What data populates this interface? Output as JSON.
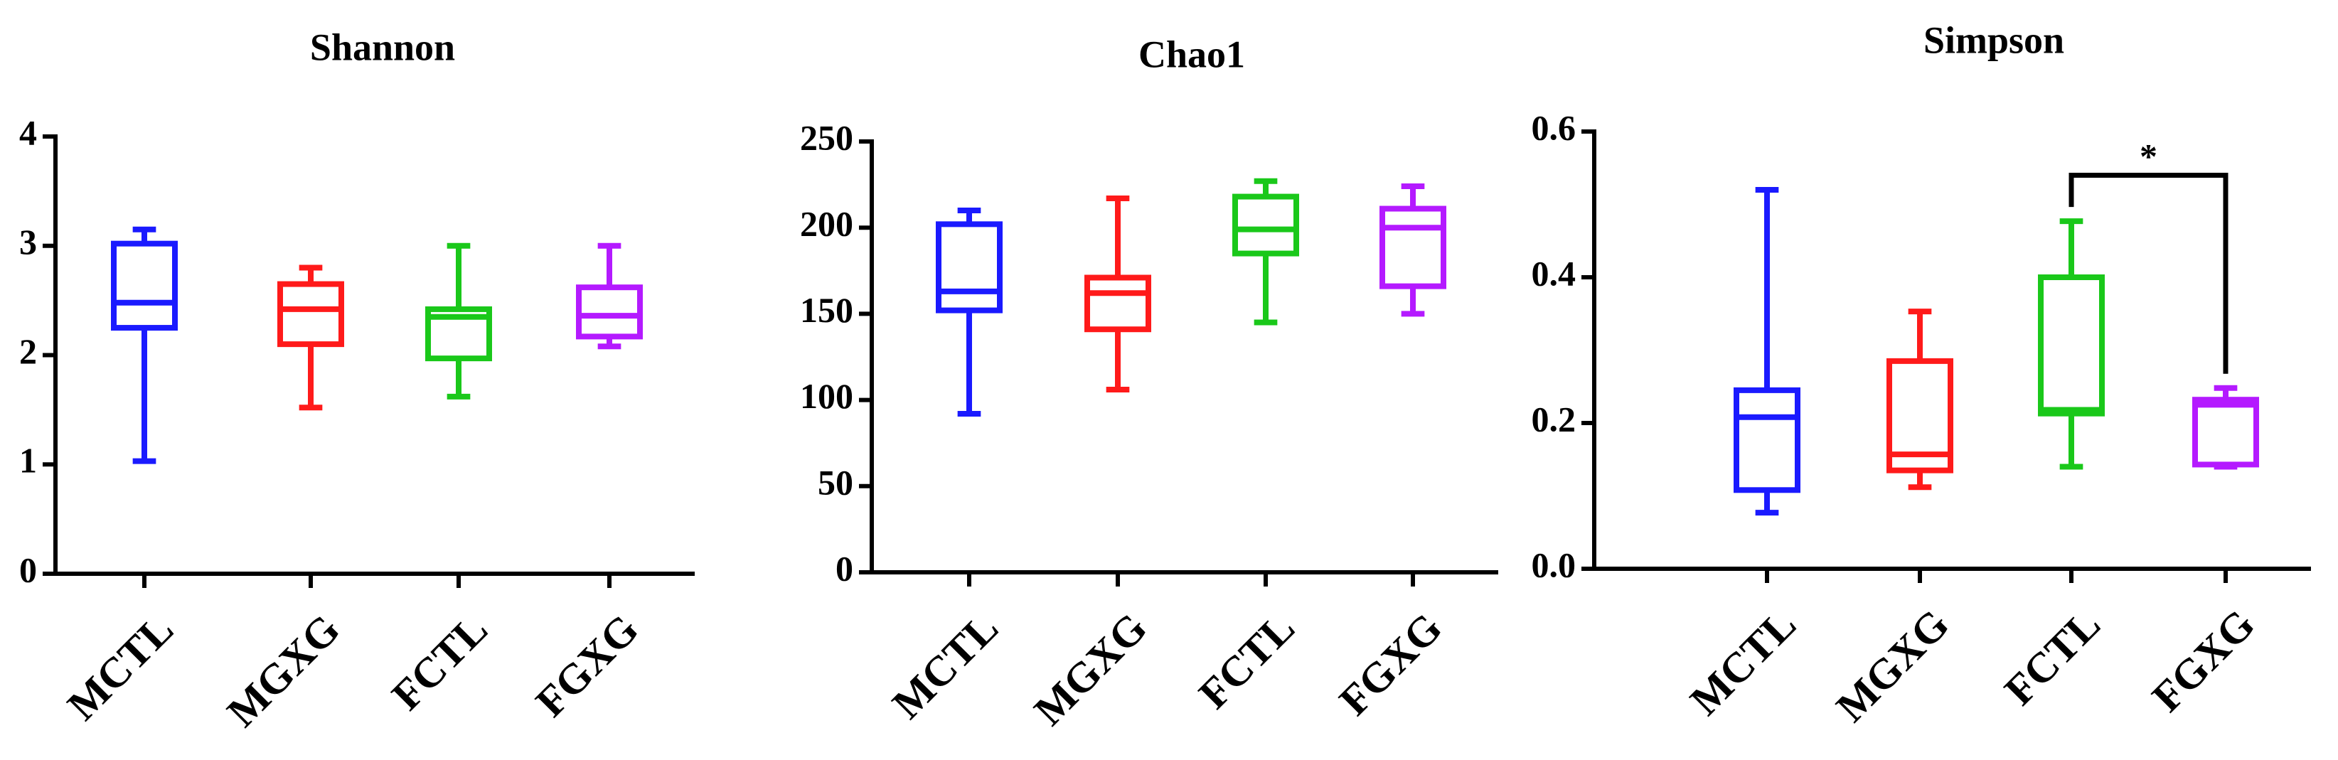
{
  "chart_data": [
    {
      "type": "boxplot",
      "title": "Shannon",
      "xlabel": "",
      "ylabel": "",
      "ylim": [
        0,
        4
      ],
      "yticks": [
        "0",
        "1",
        "2",
        "3",
        "4"
      ],
      "categories": [
        "MCTL",
        "MGXG",
        "FCTL",
        "FGXG"
      ],
      "colors": [
        "#1a1aff",
        "#ff1a1a",
        "#1ac81a",
        "#b41aff"
      ],
      "boxes": [
        {
          "min": 1.03,
          "q1": 2.25,
          "median": 2.48,
          "q3": 3.02,
          "max": 3.15
        },
        {
          "min": 1.52,
          "q1": 2.1,
          "median": 2.42,
          "q3": 2.65,
          "max": 2.8
        },
        {
          "min": 1.62,
          "q1": 1.97,
          "median": 2.35,
          "q3": 2.42,
          "max": 3.0
        },
        {
          "min": 2.08,
          "q1": 2.17,
          "median": 2.36,
          "q3": 2.62,
          "max": 3.0
        }
      ],
      "annotations": []
    },
    {
      "type": "boxplot",
      "title": "Chao1",
      "xlabel": "",
      "ylabel": "",
      "ylim": [
        0,
        250
      ],
      "yticks": [
        "0",
        "50",
        "100",
        "150",
        "200",
        "250"
      ],
      "categories": [
        "MCTL",
        "MGXG",
        "FCTL",
        "FGXG"
      ],
      "colors": [
        "#1a1aff",
        "#ff1a1a",
        "#1ac81a",
        "#b41aff"
      ],
      "boxes": [
        {
          "min": 92,
          "q1": 152,
          "median": 163,
          "q3": 202,
          "max": 210
        },
        {
          "min": 106,
          "q1": 141,
          "median": 162,
          "q3": 171,
          "max": 217
        },
        {
          "min": 145,
          "q1": 185,
          "median": 199,
          "q3": 218,
          "max": 227
        },
        {
          "min": 150,
          "q1": 166,
          "median": 200,
          "q3": 211,
          "max": 224
        }
      ],
      "annotations": []
    },
    {
      "type": "boxplot",
      "title": "Simpson",
      "xlabel": "",
      "ylabel": "",
      "ylim": [
        0,
        0.6
      ],
      "yticks": [
        "0.0",
        "0.2",
        "0.4",
        "0.6"
      ],
      "categories": [
        "MCTL",
        "MGXG",
        "FCTL",
        "FGXG"
      ],
      "colors": [
        "#1a1aff",
        "#ff1a1a",
        "#1ac81a",
        "#b41aff"
      ],
      "boxes": [
        {
          "min": 0.077,
          "q1": 0.108,
          "median": 0.208,
          "q3": 0.245,
          "max": 0.52
        },
        {
          "min": 0.112,
          "q1": 0.135,
          "median": 0.157,
          "q3": 0.285,
          "max": 0.353
        },
        {
          "min": 0.14,
          "q1": 0.213,
          "median": 0.218,
          "q3": 0.4,
          "max": 0.477
        },
        {
          "min": 0.14,
          "q1": 0.143,
          "median": 0.225,
          "q3": 0.232,
          "max": 0.248
        }
      ],
      "annotations": [
        {
          "text": "*",
          "from": "FCTL",
          "to": "FGXG",
          "y": 0.54
        }
      ]
    }
  ]
}
